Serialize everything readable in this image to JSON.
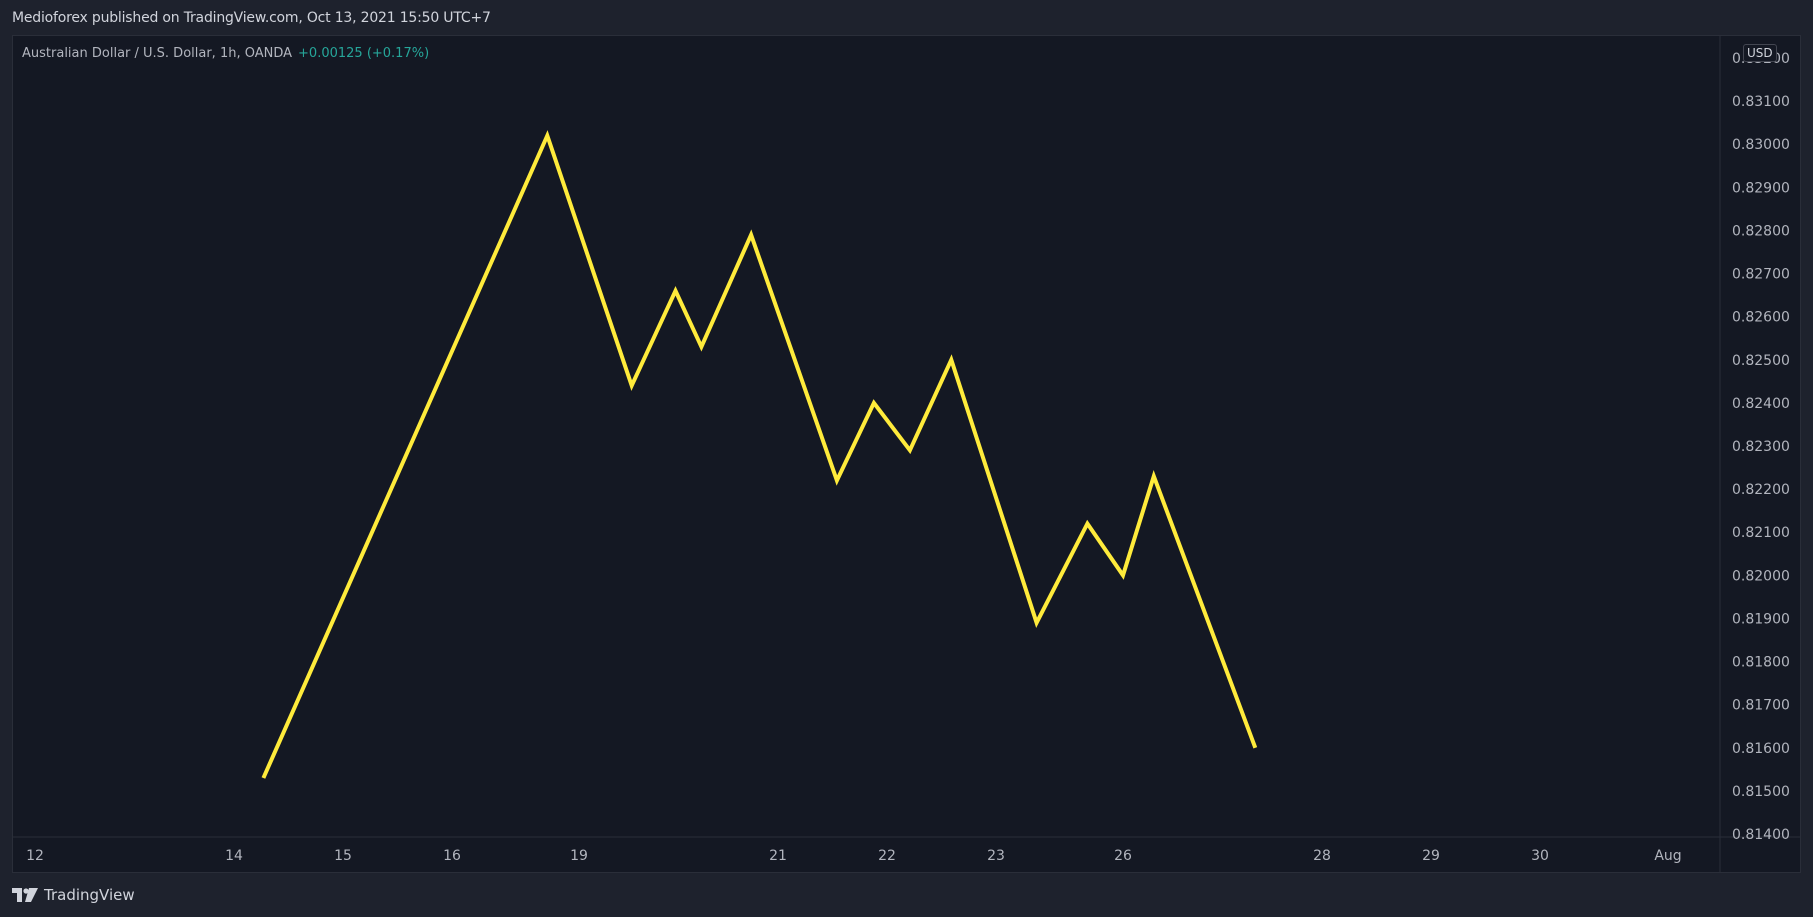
{
  "header": {
    "publisher_line": "Medioforex published on TradingView.com, Oct 13, 2021 15:50 UTC+7"
  },
  "legend": {
    "symbol_line": "Australian Dollar / U.S. Dollar, 1h, OANDA",
    "change": "+0.00125 (+0.17%)"
  },
  "price_axis": {
    "currency": "USD",
    "top_label": "0.83200"
  },
  "footer": {
    "brand": "TradingView"
  },
  "colors": {
    "line": "#ffeb3b",
    "background": "#141823",
    "change_positive": "#26a69a"
  },
  "chart_data": {
    "type": "line",
    "title": "Australian Dollar / U.S. Dollar, 1h, OANDA",
    "ylim": [
      0.814,
      0.832
    ],
    "y_ticks": [
      0.832,
      0.831,
      0.83,
      0.829,
      0.828,
      0.827,
      0.826,
      0.825,
      0.824,
      0.823,
      0.822,
      0.821,
      0.82,
      0.819,
      0.818,
      0.817,
      0.816,
      0.815,
      0.814
    ],
    "y_tick_labels": [
      "0.83200",
      "0.83100",
      "0.83000",
      "0.82900",
      "0.82800",
      "0.82700",
      "0.82600",
      "0.82500",
      "0.82400",
      "0.82300",
      "0.82200",
      "0.82100",
      "0.82000",
      "0.81900",
      "0.81800",
      "0.81700",
      "0.81600",
      "0.81500",
      "0.81400"
    ],
    "x_ticks": [
      {
        "label": "12",
        "x": 0
      },
      {
        "label": "14",
        "x": 2
      },
      {
        "label": "15",
        "x": 3
      },
      {
        "label": "16",
        "x": 4
      },
      {
        "label": "19",
        "x": 5
      },
      {
        "label": "21",
        "x": 7
      },
      {
        "label": "22",
        "x": 8
      },
      {
        "label": "23",
        "x": 9
      },
      {
        "label": "26",
        "x": 10
      },
      {
        "label": "28",
        "x": 12
      },
      {
        "label": "29",
        "x": 13
      },
      {
        "label": "30",
        "x": 14
      },
      {
        "label": "Aug",
        "x": 15
      }
    ],
    "x_range": [
      -0.1,
      16.0
    ],
    "series": [
      {
        "color": "#ffeb3b",
        "points": [
          [
            2.27,
            0.8153
          ],
          [
            4.75,
            0.8302
          ],
          [
            5.53,
            0.8244
          ],
          [
            5.97,
            0.8266
          ],
          [
            6.23,
            0.8253
          ],
          [
            6.73,
            0.8279
          ],
          [
            7.54,
            0.8222
          ],
          [
            7.88,
            0.824
          ],
          [
            8.21,
            0.8229
          ],
          [
            8.59,
            0.825
          ],
          [
            9.32,
            0.8189
          ],
          [
            9.72,
            0.8212
          ],
          [
            10.0,
            0.82
          ],
          [
            10.31,
            0.8223
          ],
          [
            11.33,
            0.816
          ]
        ]
      }
    ],
    "grid": false
  }
}
